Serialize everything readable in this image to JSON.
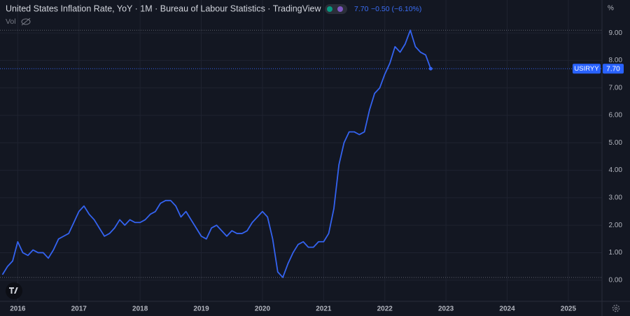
{
  "chart_data": {
    "type": "line",
    "title": "United States Inflation Rate, YoY · 1M · Bureau of Labour Statistics · TradingView",
    "last_label": "7.70",
    "change_label": "−0.50 (−6.10%)",
    "volume_label": "Vol",
    "unit_label": "%",
    "symbol": "USIRYY",
    "x": [
      2015.75,
      2015.833,
      2015.917,
      2016,
      2016.083,
      2016.167,
      2016.25,
      2016.333,
      2016.417,
      2016.5,
      2016.583,
      2016.667,
      2016.75,
      2016.833,
      2016.917,
      2017,
      2017.083,
      2017.167,
      2017.25,
      2017.333,
      2017.417,
      2017.5,
      2017.583,
      2017.667,
      2017.75,
      2017.833,
      2017.917,
      2018,
      2018.083,
      2018.167,
      2018.25,
      2018.333,
      2018.417,
      2018.5,
      2018.583,
      2018.667,
      2018.75,
      2018.833,
      2018.917,
      2019,
      2019.083,
      2019.167,
      2019.25,
      2019.333,
      2019.417,
      2019.5,
      2019.583,
      2019.667,
      2019.75,
      2019.833,
      2019.917,
      2020,
      2020.083,
      2020.167,
      2020.25,
      2020.333,
      2020.417,
      2020.5,
      2020.583,
      2020.667,
      2020.75,
      2020.833,
      2020.917,
      2021,
      2021.083,
      2021.167,
      2021.25,
      2021.333,
      2021.417,
      2021.5,
      2021.583,
      2021.667,
      2021.75,
      2021.833,
      2021.917,
      2022,
      2022.083,
      2022.167,
      2022.25,
      2022.333,
      2022.417,
      2022.5,
      2022.583,
      2022.667,
      2022.75
    ],
    "series": [
      {
        "name": "USIRYY",
        "color": "#3463f0",
        "values": [
          0.2,
          0.5,
          0.7,
          1.4,
          1.0,
          0.9,
          1.1,
          1.0,
          1.0,
          0.8,
          1.1,
          1.5,
          1.6,
          1.7,
          2.1,
          2.5,
          2.7,
          2.4,
          2.2,
          1.9,
          1.6,
          1.7,
          1.9,
          2.2,
          2.0,
          2.2,
          2.1,
          2.1,
          2.2,
          2.4,
          2.5,
          2.8,
          2.9,
          2.9,
          2.7,
          2.3,
          2.5,
          2.2,
          1.9,
          1.6,
          1.5,
          1.9,
          2.0,
          1.8,
          1.6,
          1.8,
          1.7,
          1.7,
          1.8,
          2.1,
          2.3,
          2.5,
          2.3,
          1.5,
          0.3,
          0.1,
          0.6,
          1.0,
          1.3,
          1.4,
          1.2,
          1.2,
          1.4,
          1.4,
          1.7,
          2.6,
          4.2,
          5.0,
          5.4,
          5.4,
          5.3,
          5.4,
          6.2,
          6.8,
          7.0,
          7.5,
          7.9,
          8.5,
          8.3,
          8.6,
          9.1,
          8.5,
          8.3,
          8.2,
          7.7
        ]
      }
    ],
    "xlim": [
      2015.71,
      2025.55
    ],
    "xticks": [
      2016,
      2017,
      2018,
      2019,
      2020,
      2021,
      2022,
      2023,
      2024,
      2025
    ],
    "ylim": [
      -0.77,
      10.2
    ],
    "yticks": [
      {
        "value": 0,
        "label": "0.00"
      },
      {
        "value": 1,
        "label": "1.00"
      },
      {
        "value": 2,
        "label": "2.00"
      },
      {
        "value": 3,
        "label": "3.00"
      },
      {
        "value": 4,
        "label": "4.00"
      },
      {
        "value": 5,
        "label": "5.00"
      },
      {
        "value": 6,
        "label": "6.00"
      },
      {
        "value": 7,
        "label": "7.00"
      },
      {
        "value": 8,
        "label": "8.00"
      },
      {
        "value": 9,
        "label": "9.00"
      }
    ],
    "grid": true
  }
}
